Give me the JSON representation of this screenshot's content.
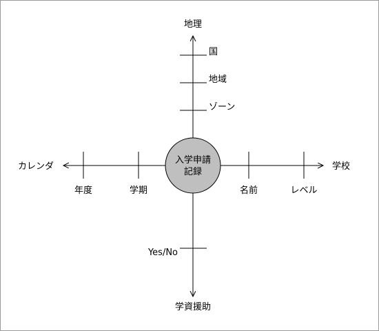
{
  "center": {
    "lines": [
      "入学申請",
      "記録"
    ],
    "fill": "#bfbfbf"
  },
  "axes": {
    "up": {
      "label": "地理",
      "ticks": [
        "国",
        "地域",
        "ゾーン"
      ]
    },
    "down": {
      "label": "学資援助",
      "ticks": [
        "Yes/No"
      ]
    },
    "left": {
      "label": "カレンダ",
      "ticks": [
        "年度",
        "学期"
      ]
    },
    "right": {
      "label": "学校",
      "ticks": [
        "名前",
        "レベル"
      ]
    }
  },
  "colors": {
    "line": "#000000",
    "border": "#999999",
    "center_fill": "#bfbfbf"
  }
}
